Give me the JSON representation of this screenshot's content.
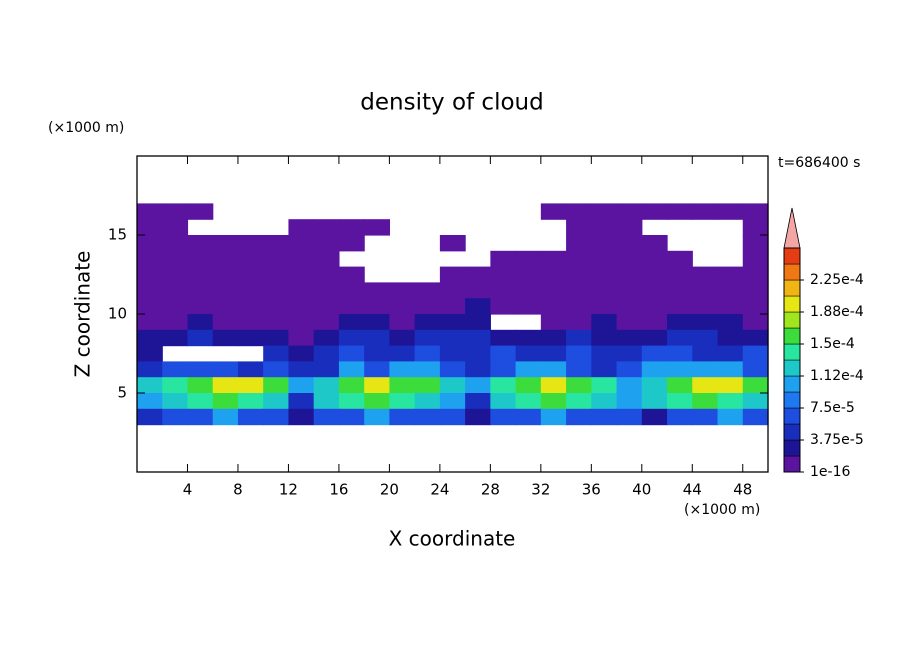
{
  "chart_data": {
    "type": "contour",
    "title": "density of cloud",
    "time_label": "t=686400 s",
    "xlabel": "X coordinate",
    "ylabel": "Z coordinate",
    "x_unit": "(×1000 m)",
    "y_unit": "(×1000 m)",
    "xlim": [
      0,
      50
    ],
    "ylim": [
      0,
      20
    ],
    "xticks": [
      4,
      8,
      12,
      16,
      20,
      24,
      28,
      32,
      36,
      40,
      44,
      48
    ],
    "yticks": [
      5,
      10,
      15
    ],
    "colorbar": {
      "lim": [
        1e-16,
        0.0002625
      ],
      "ticks": [
        {
          "value": 1e-16,
          "label": "1e-16"
        },
        {
          "value": 3.75e-05,
          "label": "3.75e-5"
        },
        {
          "value": 7.5e-05,
          "label": "7.5e-5"
        },
        {
          "value": 0.0001125,
          "label": "1.12e-4"
        },
        {
          "value": 0.00015,
          "label": "1.5e-4"
        },
        {
          "value": 0.0001875,
          "label": "1.88e-4"
        },
        {
          "value": 0.000225,
          "label": "2.25e-4"
        }
      ],
      "colors": [
        "#5a14a0",
        "#1e1496",
        "#1a2ebe",
        "#1e4ee0",
        "#1e78f0",
        "#1ea2f0",
        "#1ec8c8",
        "#28e6a0",
        "#3cdc3c",
        "#a0e61e",
        "#e6e614",
        "#f0b414",
        "#f07814",
        "#e63c14"
      ],
      "extend_color": "#f4a6a6"
    },
    "field": {
      "x": [
        1,
        3,
        5,
        7,
        9,
        11,
        13,
        15,
        17,
        19,
        21,
        23,
        25,
        27,
        29,
        31,
        33,
        35,
        37,
        39,
        41,
        43,
        45,
        47,
        49
      ],
      "z": [
        16.5,
        15.5,
        14.5,
        13.5,
        12.5,
        11.5,
        10.5,
        9.5,
        8.5,
        7.5,
        6.5,
        5.5,
        4.5,
        3.5
      ],
      "values": [
        [
          1e-05,
          1e-05,
          1e-05,
          null,
          null,
          null,
          null,
          null,
          null,
          null,
          null,
          null,
          null,
          null,
          null,
          null,
          1e-05,
          1e-05,
          1e-05,
          1e-05,
          1e-05,
          1e-05,
          1e-05,
          1e-05,
          1e-05
        ],
        [
          1e-05,
          1e-05,
          null,
          null,
          null,
          null,
          1e-05,
          1e-05,
          1e-05,
          1e-05,
          null,
          null,
          null,
          null,
          null,
          null,
          null,
          1e-05,
          1e-05,
          1e-05,
          null,
          null,
          null,
          null,
          1e-05
        ],
        [
          1e-05,
          1e-05,
          1e-05,
          1e-05,
          1e-05,
          1e-05,
          1e-05,
          1e-05,
          1e-05,
          null,
          null,
          null,
          1e-05,
          null,
          null,
          null,
          null,
          1e-05,
          1e-05,
          1e-05,
          1e-05,
          null,
          null,
          null,
          1e-05
        ],
        [
          1e-05,
          1e-05,
          1e-05,
          1e-05,
          1e-05,
          1e-05,
          1e-05,
          1e-05,
          null,
          null,
          null,
          null,
          null,
          null,
          1e-05,
          1e-05,
          1e-05,
          1e-05,
          1e-05,
          1e-05,
          1e-05,
          1e-05,
          null,
          null,
          1e-05
        ],
        [
          1e-05,
          1e-05,
          1e-05,
          1e-05,
          1e-05,
          1e-05,
          1e-05,
          1e-05,
          1e-05,
          null,
          null,
          null,
          1e-05,
          1e-05,
          1e-05,
          1e-05,
          1e-05,
          1e-05,
          1e-05,
          1e-05,
          1e-05,
          1e-05,
          1e-05,
          1e-05,
          1e-05
        ],
        [
          1e-05,
          1e-05,
          1e-05,
          1e-05,
          1e-05,
          1e-05,
          1e-05,
          1e-05,
          1e-05,
          1e-05,
          1e-05,
          1e-05,
          1e-05,
          1e-05,
          1e-05,
          1e-05,
          1e-05,
          1e-05,
          1e-05,
          1e-05,
          1e-05,
          1e-05,
          1e-05,
          1e-05,
          1e-05
        ],
        [
          1e-05,
          1e-05,
          1e-05,
          1e-05,
          1e-05,
          1e-05,
          1e-05,
          1e-05,
          1e-05,
          1e-05,
          1e-05,
          1e-05,
          1e-05,
          3e-05,
          1e-05,
          1e-05,
          1e-05,
          1e-05,
          1e-05,
          1e-05,
          1e-05,
          1e-05,
          1e-05,
          1e-05,
          1e-05
        ],
        [
          1e-05,
          1e-05,
          3e-05,
          1e-05,
          1e-05,
          1e-05,
          1e-05,
          1e-05,
          3e-05,
          3e-05,
          1e-05,
          3e-05,
          3e-05,
          3e-05,
          null,
          null,
          1e-05,
          1e-05,
          3e-05,
          1e-05,
          1e-05,
          3e-05,
          3e-05,
          3e-05,
          1e-05
        ],
        [
          3e-05,
          3e-05,
          5e-05,
          3e-05,
          3e-05,
          3e-05,
          1e-05,
          3e-05,
          5e-05,
          5e-05,
          3e-05,
          5e-05,
          5e-05,
          5e-05,
          3e-05,
          3e-05,
          3e-05,
          5e-05,
          3e-05,
          3e-05,
          3e-05,
          5e-05,
          5e-05,
          3e-05,
          3e-05
        ],
        [
          3e-05,
          null,
          null,
          null,
          null,
          5e-05,
          3e-05,
          5e-05,
          7e-05,
          5e-05,
          5e-05,
          7e-05,
          5e-05,
          5e-05,
          7e-05,
          5e-05,
          5e-05,
          7e-05,
          5e-05,
          5e-05,
          7e-05,
          7e-05,
          5e-05,
          5e-05,
          7e-05
        ],
        [
          5e-05,
          7e-05,
          7e-05,
          7e-05,
          5e-05,
          7e-05,
          5e-05,
          5e-05,
          0.0001,
          7e-05,
          0.0001,
          0.0001,
          7e-05,
          5e-05,
          7e-05,
          0.0001,
          0.0001,
          7e-05,
          5e-05,
          7e-05,
          0.0001,
          0.0001,
          0.0001,
          0.0001,
          7e-05
        ],
        [
          0.00012,
          0.00014,
          0.00016,
          0.0002,
          0.0002,
          0.00016,
          0.0001,
          0.00012,
          0.00016,
          0.0002,
          0.00016,
          0.00016,
          0.00012,
          0.0001,
          0.00014,
          0.00016,
          0.0002,
          0.00016,
          0.00014,
          0.0001,
          0.00012,
          0.00016,
          0.0002,
          0.0002,
          0.00016
        ],
        [
          0.0001,
          0.00012,
          0.00014,
          0.00016,
          0.00014,
          0.00012,
          5e-05,
          0.00012,
          0.00014,
          0.00016,
          0.00014,
          0.00012,
          0.0001,
          5e-05,
          0.00012,
          0.00014,
          0.00016,
          0.00014,
          0.00012,
          0.0001,
          0.00012,
          0.00014,
          0.00016,
          0.00014,
          0.00012
        ],
        [
          5e-05,
          7e-05,
          7e-05,
          0.0001,
          7e-05,
          7e-05,
          3e-05,
          7e-05,
          7e-05,
          0.0001,
          7e-05,
          7e-05,
          7e-05,
          3e-05,
          7e-05,
          7e-05,
          0.0001,
          7e-05,
          7e-05,
          7e-05,
          3e-05,
          7e-05,
          7e-05,
          0.0001,
          7e-05
        ]
      ]
    }
  }
}
